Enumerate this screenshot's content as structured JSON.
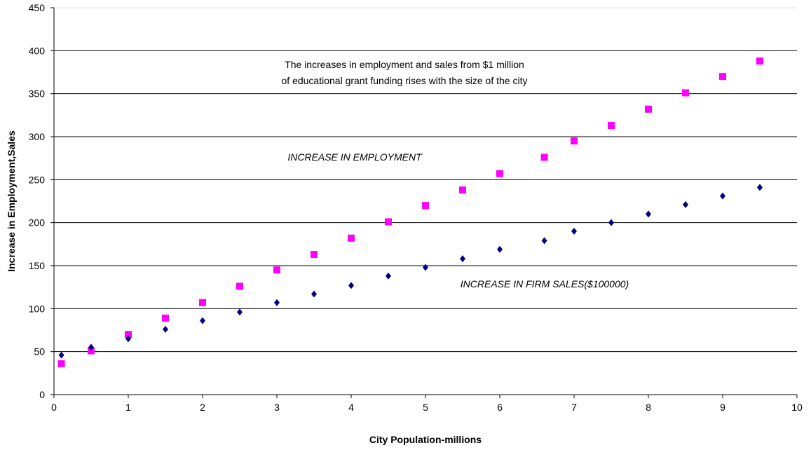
{
  "chart_data": {
    "type": "scatter",
    "title": "",
    "xlabel": "City Population-millions",
    "ylabel": "Increase in Employment,Sales",
    "xlim": [
      0,
      10
    ],
    "ylim": [
      0,
      450
    ],
    "xticks": [
      0,
      1,
      2,
      3,
      4,
      5,
      6,
      7,
      8,
      9,
      10
    ],
    "yticks": [
      0,
      50,
      100,
      150,
      200,
      250,
      300,
      350,
      400,
      450
    ],
    "grid": "horizontal",
    "legend": "none",
    "annotations": [
      "The increases in employment and sales from $1 million",
      "of educational grant funding rises with the size of the city",
      "INCREASE IN EMPLOYMENT",
      "INCREASE IN FIRM SALES($100000)"
    ],
    "series": [
      {
        "marker": "square",
        "color": "#ff00ff",
        "points": [
          [
            0.1,
            36
          ],
          [
            0.5,
            51
          ],
          [
            1,
            70
          ],
          [
            1.5,
            89
          ],
          [
            2,
            107
          ],
          [
            2.5,
            126
          ],
          [
            3,
            145
          ],
          [
            3.5,
            163
          ],
          [
            4,
            182
          ],
          [
            4.5,
            201
          ],
          [
            5,
            220
          ],
          [
            5.5,
            238
          ],
          [
            6,
            257
          ],
          [
            6.6,
            276
          ],
          [
            7,
            295
          ],
          [
            7.5,
            313
          ],
          [
            8,
            332
          ],
          [
            8.5,
            351
          ],
          [
            9,
            370
          ],
          [
            9.5,
            388
          ]
        ]
      },
      {
        "marker": "diamond",
        "color": "#000080",
        "points": [
          [
            0.1,
            46
          ],
          [
            0.5,
            55
          ],
          [
            1,
            65
          ],
          [
            1.5,
            76
          ],
          [
            2,
            86
          ],
          [
            2.5,
            96
          ],
          [
            3,
            107
          ],
          [
            3.5,
            117
          ],
          [
            4,
            127
          ],
          [
            4.5,
            138
          ],
          [
            5,
            148
          ],
          [
            5.5,
            158
          ],
          [
            6,
            169
          ],
          [
            6.6,
            179
          ],
          [
            7,
            190
          ],
          [
            7.5,
            200
          ],
          [
            8,
            210
          ],
          [
            8.5,
            221
          ],
          [
            9,
            231
          ],
          [
            9.5,
            241
          ]
        ]
      }
    ]
  }
}
